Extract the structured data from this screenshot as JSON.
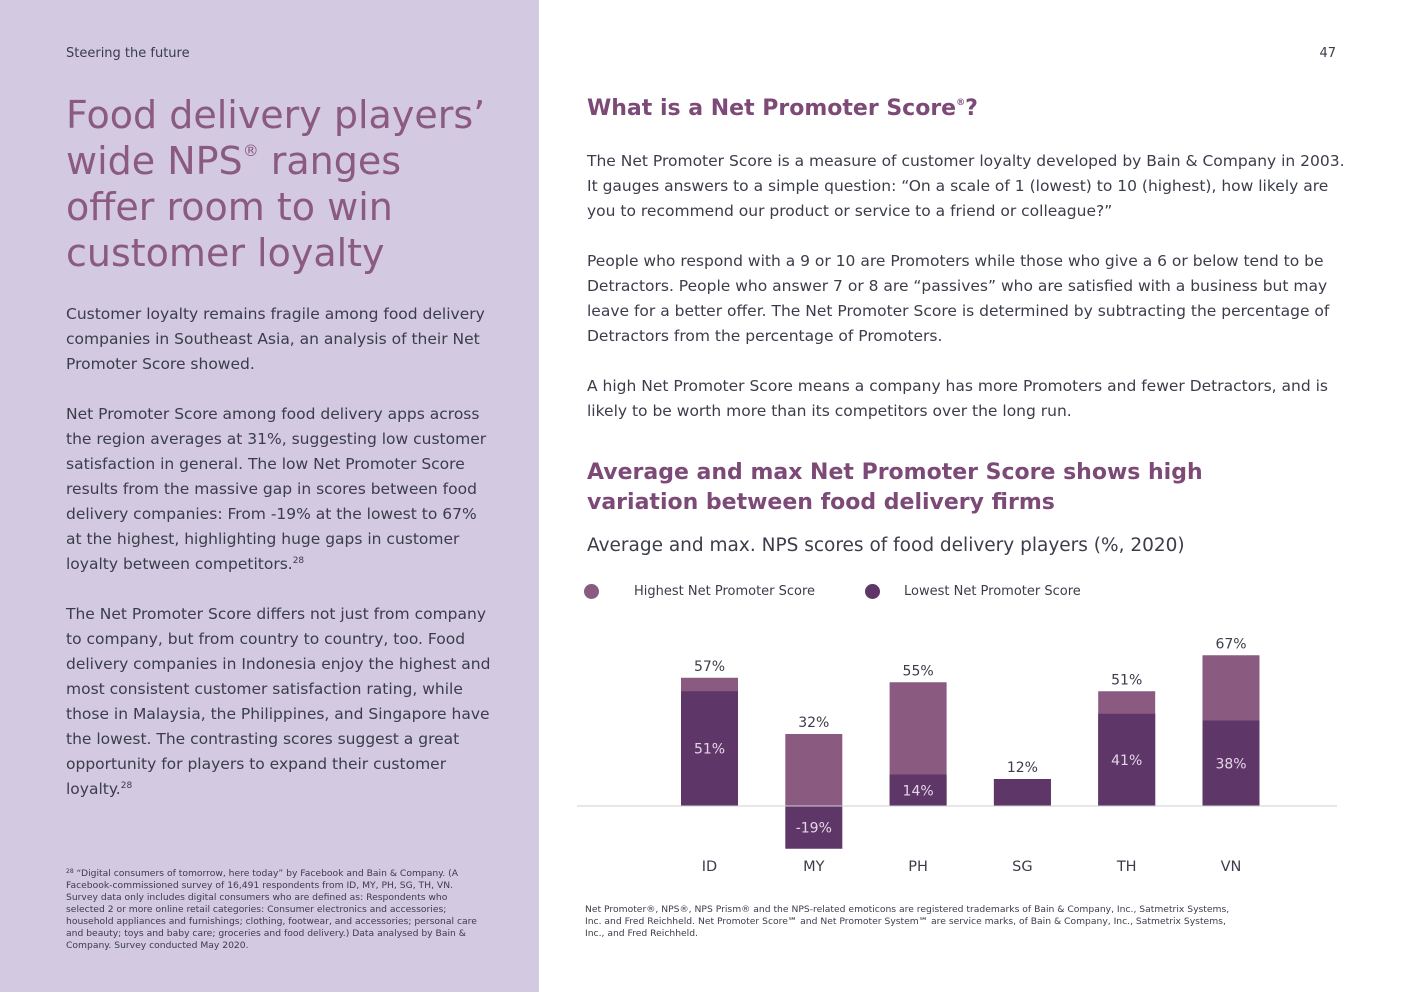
{
  "header": {
    "section": "Steering the future",
    "page_number": "47"
  },
  "left": {
    "title": {
      "line1": "Food delivery players’",
      "line2a": "wide NPS",
      "line2_mark": "®",
      "line2b": " ranges",
      "line3": "offer room to win",
      "line4": "customer loyalty"
    },
    "p1": "Customer loyalty remains fragile among food delivery companies in Southeast Asia, an analysis of their Net Promoter Score showed.",
    "p2": "Net Promoter Score among food delivery apps across the region averages at 31%, suggesting low customer satisfaction in general. The low Net Promoter Score results from the massive gap in scores between food delivery companies: From -19% at the lowest to 67% at the highest, highlighting huge gaps in customer loyalty between competitors.",
    "p3": "The Net Promoter Score differs not just from company to company, but from country to country, too. Food delivery companies in Indonesia enjoy the highest and most consistent customer satisfaction rating, while those in Malaysia, the Philippines, and Singapore have the lowest. The contrasting scores suggest a great opportunity for players to expand their customer loyalty.",
    "ref": "28",
    "footnote_mark": "28",
    "footnote": " “Digital consumers of tomorrow, here today” by Facebook and Bain & Company. (A Facebook-commissioned survey of 16,491 respondents from ID, MY, PH, SG, TH, VN. Survey data only includes digital consumers who are defined as: Respondents who selected 2 or more online retail categories: Consumer electronics and accessories; household appliances and furnishings; clothing, footwear, and accessories; personal care and beauty; toys and baby care; groceries and food delivery.) Data analysed by Bain & Company. Survey conducted May 2020."
  },
  "right": {
    "info_title": "What is a Net Promoter Score",
    "info_title_mark": "®",
    "info_title_end": "?",
    "p1": "The Net Promoter Score is a measure of customer loyalty developed by Bain & Company in 2003. It gauges answers to a simple question: “On a scale of 1 (lowest) to 10 (highest), how likely are you to recommend our product or service to a friend or colleague?”",
    "p2": "People who respond with a 9 or 10 are Promoters while those who give a 6 or below tend to be Detractors. People who answer 7 or 8 are “passives” who are satisfied with a business but may leave for a better offer. The Net Promoter Score is determined by subtracting the percentage of Detractors from the percentage of Promoters.",
    "p3": "A high Net Promoter Score means a company has more Promoters and fewer Detractors, and is likely to be worth more than its competitors over the long run.",
    "chart_heading": "Average and max Net Promoter Score shows high variation between food delivery firms",
    "legal": "Net Promoter®, NPS®, NPS Prism® and the NPS-related emoticons are registered trademarks of Bain & Company, Inc., Satmetrix Systems, Inc. and Fred Reichheld. Net Promoter Score℠ and Net Promoter System℠ are service marks, of Bain & Company, Inc., Satmetrix Systems, Inc., and Fred Reichheld."
  },
  "chart_data": {
    "type": "bar",
    "title": "Average and max. NPS scores of food delivery players (%, 2020)",
    "categories": [
      "ID",
      "MY",
      "PH",
      "SG",
      "TH",
      "VN"
    ],
    "series": [
      {
        "name": "Highest Net Promoter Score",
        "values": [
          57,
          32,
          55,
          12,
          51,
          67
        ],
        "labels": [
          "57%",
          "32%",
          "55%",
          "12%",
          "51%",
          "67%"
        ]
      },
      {
        "name": "Lowest Net Promoter Score",
        "values": [
          51,
          -19,
          14,
          12,
          41,
          38
        ],
        "labels": [
          "51%",
          "-19%",
          "14%",
          "",
          "41%",
          "38%"
        ]
      }
    ],
    "colors": {
      "highest": "#8a5a80",
      "lowest": "#5e3668"
    },
    "legend_position": "top-left",
    "grid": false
  }
}
